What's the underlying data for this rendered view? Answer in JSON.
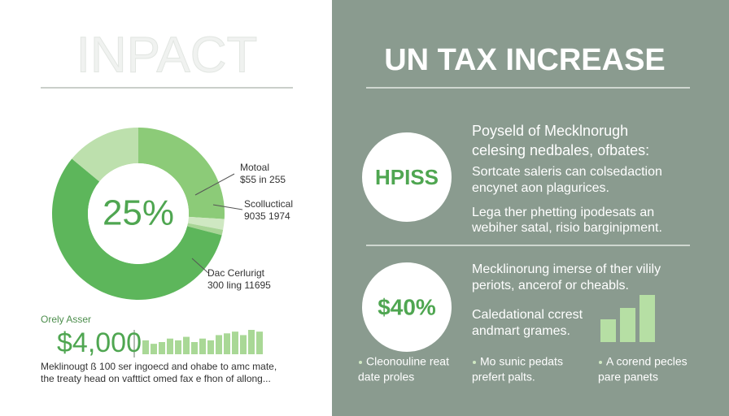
{
  "left": {
    "title": "INPACT",
    "donut": {
      "center_label": "25%",
      "segments": [
        {
          "value": 26,
          "color": "#8ccb78"
        },
        {
          "value": 2,
          "color": "#cfe8c2"
        },
        {
          "value": 1,
          "color": "#a8d596"
        },
        {
          "value": 57,
          "color": "#5db65b"
        },
        {
          "value": 14,
          "color": "#bde0ad"
        }
      ],
      "callouts": [
        {
          "lines": [
            "Motoal",
            "$55 in 255"
          ]
        },
        {
          "lines": [
            "Scolluctical",
            "9035 1974"
          ]
        },
        {
          "lines": [
            "Dac Cerlurigt",
            "300 ling 11695"
          ]
        }
      ]
    },
    "stat_label": "Orely Asser",
    "stat_value": "$4,000",
    "bars": {
      "color": "#a9d896",
      "values": [
        8,
        6,
        7,
        9,
        8,
        10,
        7,
        9,
        8,
        11,
        12,
        13,
        11,
        14,
        13
      ]
    },
    "note": [
      "Meklinougt ß 100 ser ingoecd and ohabe to amc mate,",
      "the treaty head on vafttict omed fax e fhon of allong..."
    ]
  },
  "right": {
    "title": "UN TAX INCREASE",
    "block1": {
      "badge": "HPISS",
      "lines": [
        "Poyseld of Mecklnorugh",
        "celesing nedbales, ofbates:",
        "Sortcate saleris can colsedaction",
        "encynet aon plagurices.",
        "Lega ther phetting ipodesats an",
        "webiher satal, risio barginipment."
      ]
    },
    "block2": {
      "badge": "$40%",
      "lines": [
        "Mecklinorung imerse of ther vilily",
        "periots, ancerof or cheabls.",
        "Caledational ccrest",
        "andmart grames."
      ],
      "bars": {
        "color": "#b6dfa4",
        "values": [
          28,
          42,
          58
        ]
      }
    },
    "bullets": [
      {
        "lines": [
          "Cleonouline reat",
          "date proles"
        ]
      },
      {
        "lines": [
          "Mo sunic pedats",
          "prefert palts."
        ]
      },
      {
        "lines": [
          "A corend pecles",
          "pare panets"
        ]
      }
    ]
  }
}
